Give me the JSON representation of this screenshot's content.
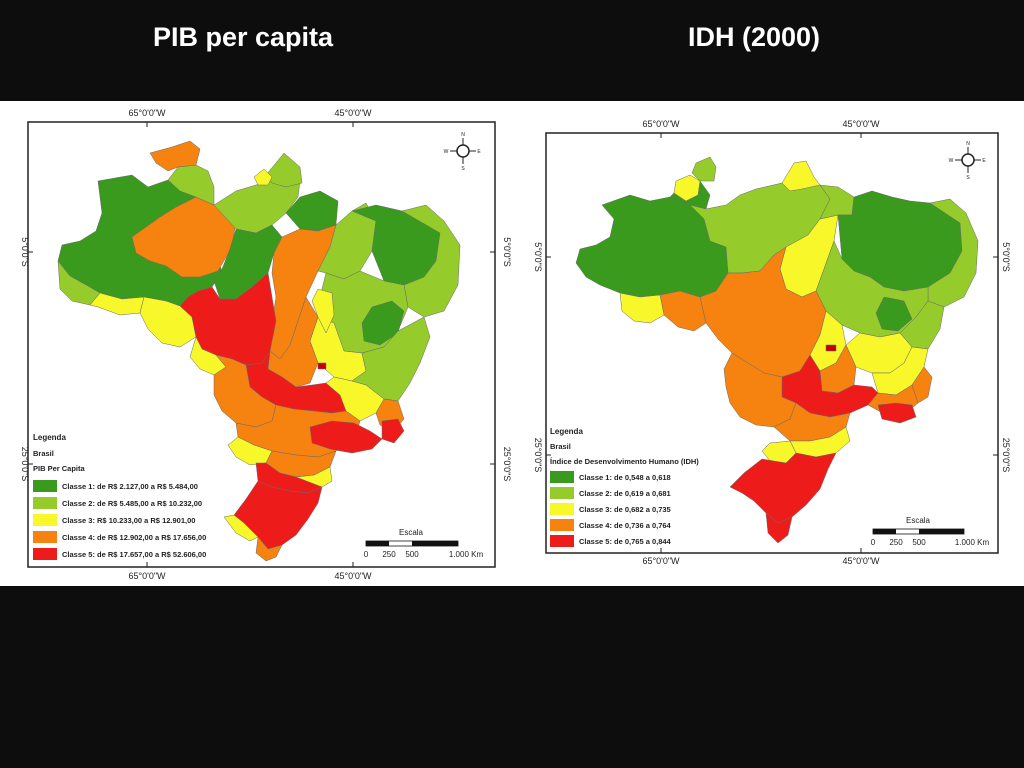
{
  "slide": {
    "title_left": "PIB  per capita",
    "title_right": "IDH (2000)"
  },
  "colors": {
    "class1": "#3a9a1e",
    "class2": "#95cc2b",
    "class3": "#f7f72a",
    "class4": "#f6820f",
    "class5": "#ee1b1b",
    "background": "#0d0d0d"
  },
  "map_left": {
    "coord_top_1": "65°0'0\"W",
    "coord_top_2": "45°0'0\"W",
    "coord_bottom_1": "65°0'0\"W",
    "coord_bottom_2": "45°0'0\"W",
    "coord_left_1": "5°0'0\"S",
    "coord_left_2": "25°0'0\"S",
    "coord_right_1": "5°0'0\"S",
    "coord_right_2": "25°0'0\"S",
    "compass": {
      "n": "N",
      "s": "S",
      "e": "E",
      "w": "W"
    },
    "legend": {
      "heading": "Legenda",
      "layer": "Brasil",
      "variable": "PIB Per Capita",
      "items": [
        {
          "label": "Classe 1: de R$ 2.127,00 a R$ 5.484,00"
        },
        {
          "label": "Classe 2: de R$ 5.485,00 a R$ 10.232,00"
        },
        {
          "label": "Classe 3: R$ 10.233,00 a R$ 12.901,00"
        },
        {
          "label": "Classe 4: de R$ 12.902,00 a R$ 17.656,00"
        },
        {
          "label": "Classe 5: de R$ 17.657,00 a R$ 52.606,00"
        }
      ]
    },
    "scale": {
      "title": "Escala",
      "t0": "0",
      "t1": "250",
      "t2": "500",
      "t3": "1.000 Km"
    }
  },
  "map_right": {
    "coord_top_1": "65°0'0\"W",
    "coord_top_2": "45°0'0\"W",
    "coord_bottom_1": "65°0'0\"W",
    "coord_bottom_2": "45°0'0\"W",
    "coord_left_1": "5°0'0\"S",
    "coord_left_2": "25°0'0\"S",
    "coord_right_1": "5°0'0\"S",
    "coord_right_2": "25°0'0\"S",
    "compass": {
      "n": "N",
      "s": "S",
      "e": "E",
      "w": "W"
    },
    "legend": {
      "heading": "Legenda",
      "layer": "Brasil",
      "variable": "Índice de Desenvolvimento Humano (IDH)",
      "items": [
        {
          "label": "Classe 1: de 0,548 a 0,618"
        },
        {
          "label": "Classe 2: de 0,619 a 0,681"
        },
        {
          "label": "Classe 3: de 0,682 a 0,735"
        },
        {
          "label": "Classe 4: de 0,736 a 0,764"
        },
        {
          "label": "Classe 5: de 0,765 a 0,844"
        }
      ]
    },
    "scale": {
      "title": "Escala",
      "t0": "0",
      "t1": "250",
      "t2": "500",
      "t3": "1.000 Km"
    }
  }
}
